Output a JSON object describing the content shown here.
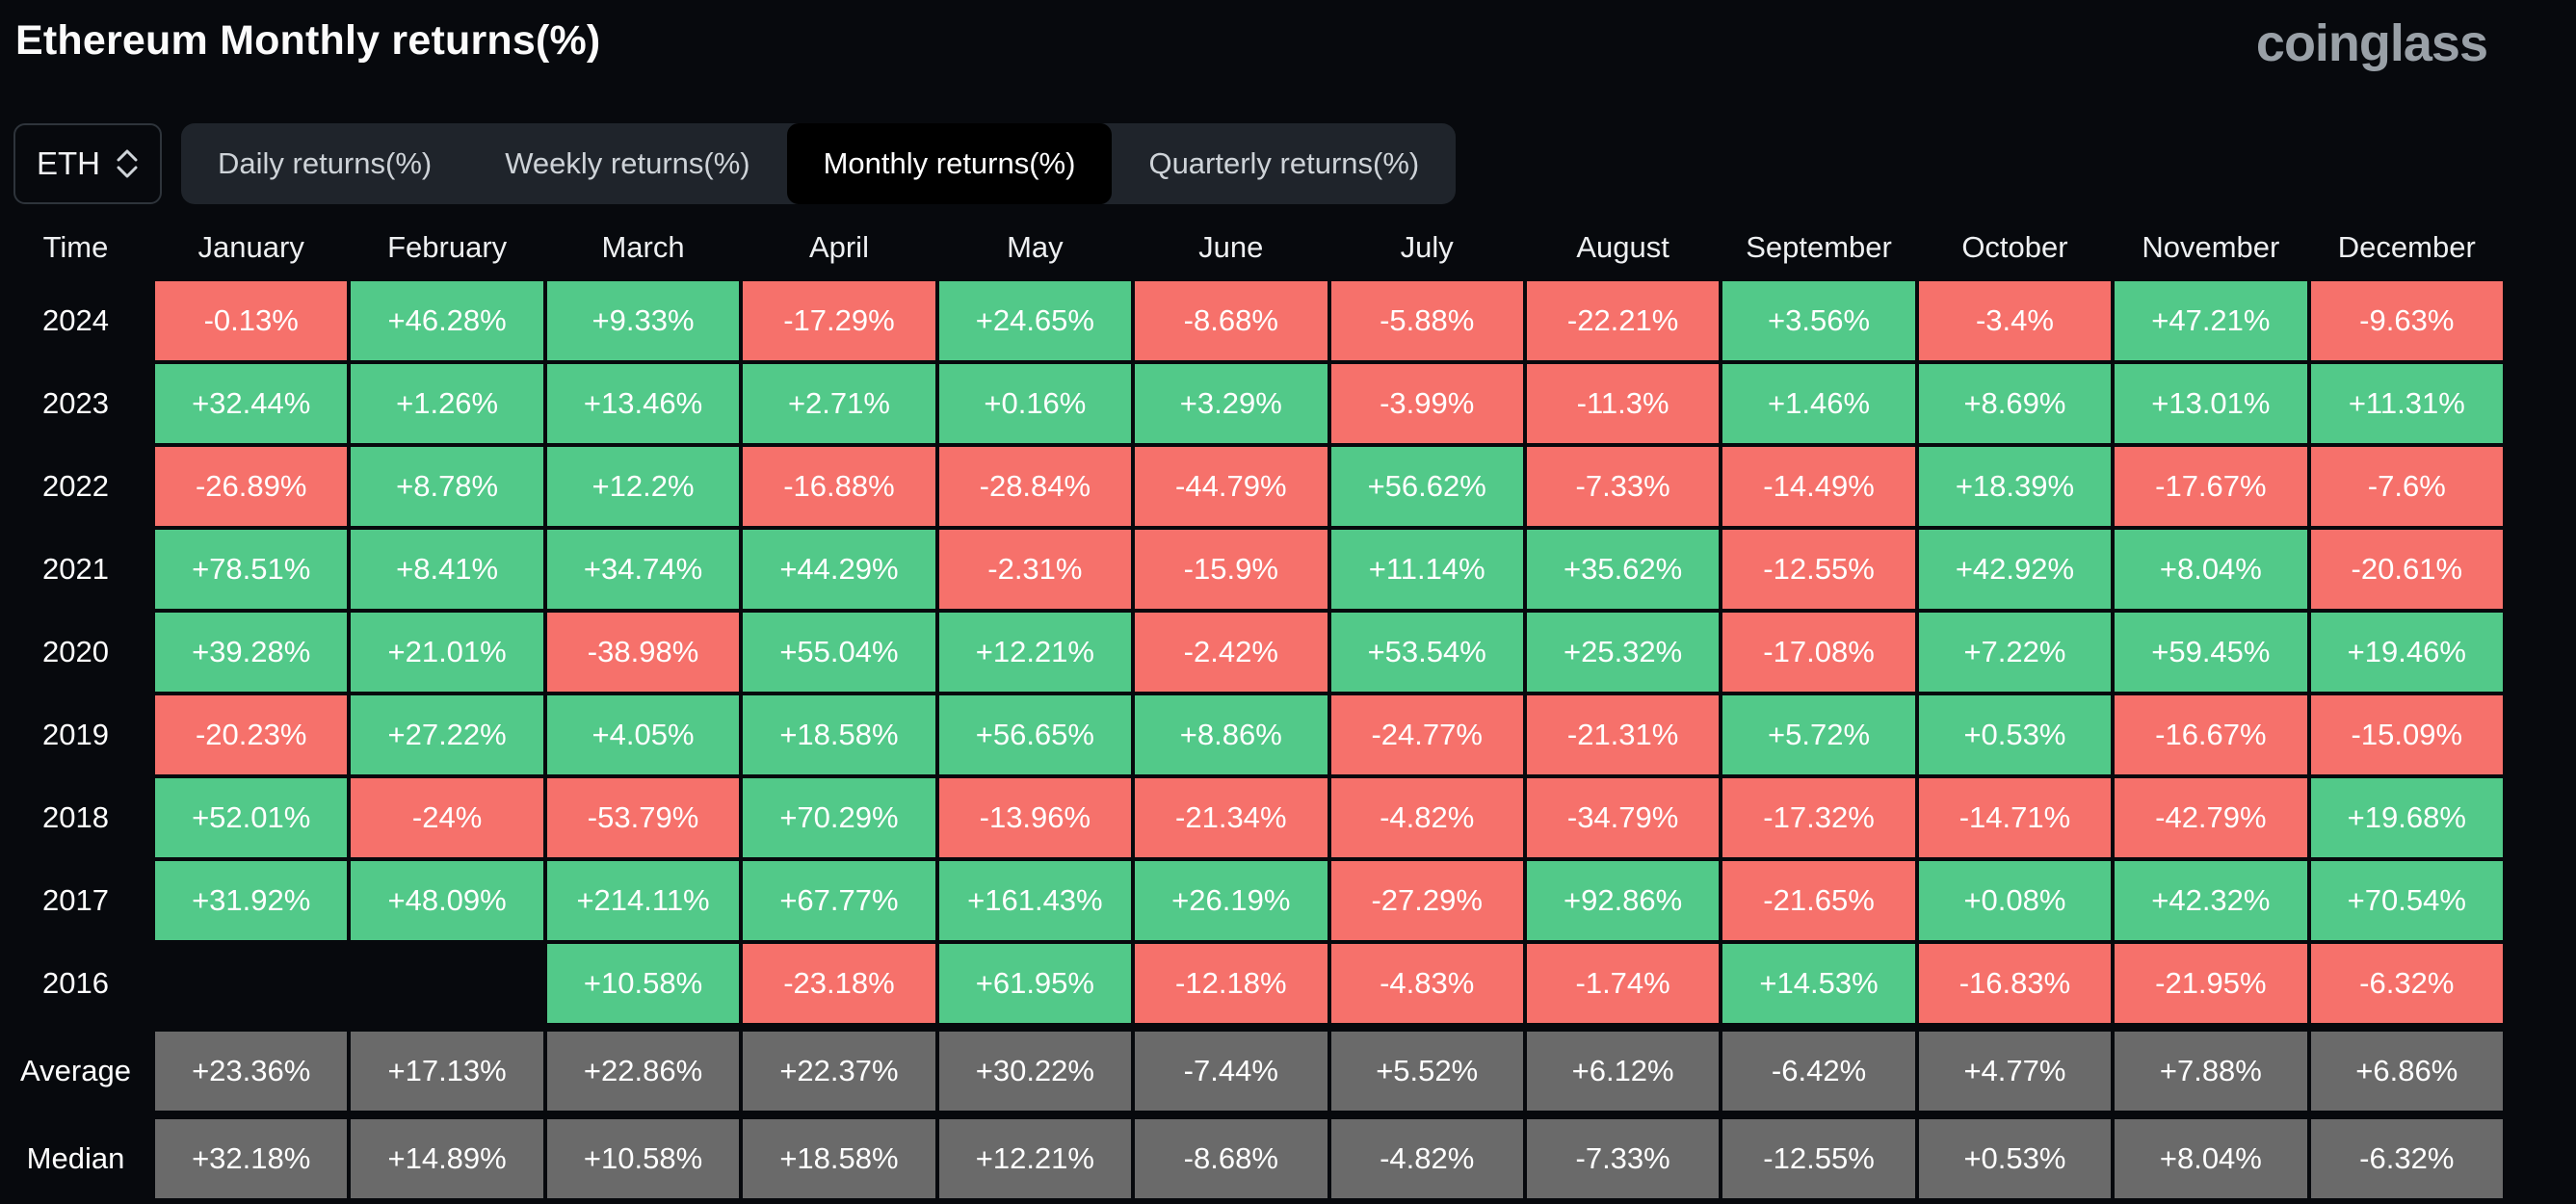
{
  "page": {
    "title": "Ethereum Monthly returns(%)",
    "logo": "coinglass"
  },
  "controls": {
    "symbol_select": {
      "value": "ETH"
    },
    "tabs": [
      {
        "label": "Daily returns(%)",
        "active": false
      },
      {
        "label": "Weekly returns(%)",
        "active": false
      },
      {
        "label": "Monthly returns(%)",
        "active": true
      },
      {
        "label": "Quarterly returns(%)",
        "active": false
      }
    ]
  },
  "colors": {
    "positive": "#52c989",
    "negative": "#f6716b",
    "neutral": "#6a6a6a",
    "background": "#07090d"
  },
  "chart_data": {
    "type": "table",
    "title": "Ethereum Monthly returns(%)",
    "columns": [
      "Time",
      "January",
      "February",
      "March",
      "April",
      "May",
      "June",
      "July",
      "August",
      "September",
      "October",
      "November",
      "December"
    ],
    "rows": [
      {
        "label": "2024",
        "values": [
          "-0.13%",
          "+46.28%",
          "+9.33%",
          "-17.29%",
          "+24.65%",
          "-8.68%",
          "-5.88%",
          "-22.21%",
          "+3.56%",
          "-3.4%",
          "+47.21%",
          "-9.63%"
        ]
      },
      {
        "label": "2023",
        "values": [
          "+32.44%",
          "+1.26%",
          "+13.46%",
          "+2.71%",
          "+0.16%",
          "+3.29%",
          "-3.99%",
          "-11.3%",
          "+1.46%",
          "+8.69%",
          "+13.01%",
          "+11.31%"
        ]
      },
      {
        "label": "2022",
        "values": [
          "-26.89%",
          "+8.78%",
          "+12.2%",
          "-16.88%",
          "-28.84%",
          "-44.79%",
          "+56.62%",
          "-7.33%",
          "-14.49%",
          "+18.39%",
          "-17.67%",
          "-7.6%"
        ]
      },
      {
        "label": "2021",
        "values": [
          "+78.51%",
          "+8.41%",
          "+34.74%",
          "+44.29%",
          "-2.31%",
          "-15.9%",
          "+11.14%",
          "+35.62%",
          "-12.55%",
          "+42.92%",
          "+8.04%",
          "-20.61%"
        ]
      },
      {
        "label": "2020",
        "values": [
          "+39.28%",
          "+21.01%",
          "-38.98%",
          "+55.04%",
          "+12.21%",
          "-2.42%",
          "+53.54%",
          "+25.32%",
          "-17.08%",
          "+7.22%",
          "+59.45%",
          "+19.46%"
        ]
      },
      {
        "label": "2019",
        "values": [
          "-20.23%",
          "+27.22%",
          "+4.05%",
          "+18.58%",
          "+56.65%",
          "+8.86%",
          "-24.77%",
          "-21.31%",
          "+5.72%",
          "+0.53%",
          "-16.67%",
          "-15.09%"
        ]
      },
      {
        "label": "2018",
        "values": [
          "+52.01%",
          "-24%",
          "-53.79%",
          "+70.29%",
          "-13.96%",
          "-21.34%",
          "-4.82%",
          "-34.79%",
          "-17.32%",
          "-14.71%",
          "-42.79%",
          "+19.68%"
        ]
      },
      {
        "label": "2017",
        "values": [
          "+31.92%",
          "+48.09%",
          "+214.11%",
          "+67.77%",
          "+161.43%",
          "+26.19%",
          "-27.29%",
          "+92.86%",
          "-21.65%",
          "+0.08%",
          "+42.32%",
          "+70.54%"
        ]
      },
      {
        "label": "2016",
        "values": [
          "",
          "",
          "+10.58%",
          "-23.18%",
          "+61.95%",
          "-12.18%",
          "-4.83%",
          "-1.74%",
          "+14.53%",
          "-16.83%",
          "-21.95%",
          "-6.32%"
        ]
      }
    ],
    "summary_rows": [
      {
        "label": "Average",
        "values": [
          "+23.36%",
          "+17.13%",
          "+22.86%",
          "+22.37%",
          "+30.22%",
          "-7.44%",
          "+5.52%",
          "+6.12%",
          "-6.42%",
          "+4.77%",
          "+7.88%",
          "+6.86%"
        ]
      },
      {
        "label": "Median",
        "values": [
          "+32.18%",
          "+14.89%",
          "+10.58%",
          "+18.58%",
          "+12.21%",
          "-8.68%",
          "-4.82%",
          "-7.33%",
          "-12.55%",
          "+0.53%",
          "+8.04%",
          "-6.32%"
        ]
      }
    ]
  }
}
